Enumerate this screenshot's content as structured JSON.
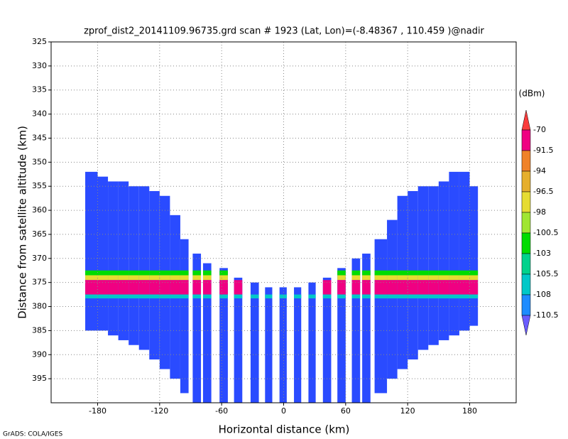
{
  "chart_data": {
    "type": "profile",
    "title": "zprof_dist2_20141109.96735.grd  scan # 1923  (Lat, Lon)=(-8.48367 , 110.459 )@nadir",
    "x_label": "Horizontal distance (km)",
    "y_label": "Distance from satellite altitude (km)",
    "footer": "GrADS: COLA/IGES",
    "xlim": [
      -225,
      225
    ],
    "ylim": [
      325,
      400
    ],
    "xticks": [
      -180,
      -120,
      -60,
      0,
      60,
      120,
      180
    ],
    "yticks": [
      325,
      330,
      335,
      340,
      345,
      350,
      355,
      360,
      365,
      370,
      375,
      380,
      385,
      390,
      395
    ],
    "grid": true,
    "colorbar": {
      "unit": "(dBm)",
      "levels": [
        -70,
        -91.5,
        -94,
        -96.5,
        -98,
        -100.5,
        -103,
        -105.5,
        -108,
        -110.5
      ],
      "colors": [
        "#fa3c3c",
        "#f00082",
        "#f08228",
        "#e6af2d",
        "#e6dc32",
        "#a0e632",
        "#00dc00",
        "#00d28c",
        "#00c8c8",
        "#1e8cff",
        "#6a5cff"
      ]
    },
    "field": {
      "color": "#2a4bff",
      "columns": [
        {
          "x0": -192,
          "x1": -180,
          "top": 352,
          "bottom": 385
        },
        {
          "x0": -180,
          "x1": -170,
          "top": 353,
          "bottom": 385
        },
        {
          "x0": -170,
          "x1": -160,
          "top": 354,
          "bottom": 386
        },
        {
          "x0": -160,
          "x1": -150,
          "top": 354,
          "bottom": 387
        },
        {
          "x0": -150,
          "x1": -140,
          "top": 355,
          "bottom": 388
        },
        {
          "x0": -140,
          "x1": -130,
          "top": 355,
          "bottom": 389
        },
        {
          "x0": -130,
          "x1": -120,
          "top": 356,
          "bottom": 391
        },
        {
          "x0": -120,
          "x1": -110,
          "top": 357,
          "bottom": 393
        },
        {
          "x0": -110,
          "x1": -100,
          "top": 361,
          "bottom": 395
        },
        {
          "x0": -100,
          "x1": -92,
          "top": 366,
          "bottom": 398
        },
        {
          "x0": -88,
          "x1": -80,
          "top": 369,
          "bottom": 400
        },
        {
          "x0": -78,
          "x1": -70,
          "top": 371,
          "bottom": 400
        },
        {
          "x0": -62,
          "x1": -54,
          "top": 372,
          "bottom": 400
        },
        {
          "x0": -48,
          "x1": -40,
          "top": 374,
          "bottom": 400
        },
        {
          "x0": -32,
          "x1": -24,
          "top": 375,
          "bottom": 400
        },
        {
          "x0": -18,
          "x1": -11,
          "top": 376,
          "bottom": 400
        },
        {
          "x0": -4,
          "x1": 3,
          "top": 376,
          "bottom": 400
        },
        {
          "x0": 10,
          "x1": 17,
          "top": 376,
          "bottom": 400
        },
        {
          "x0": 24,
          "x1": 31,
          "top": 375,
          "bottom": 400
        },
        {
          "x0": 38,
          "x1": 46,
          "top": 374,
          "bottom": 400
        },
        {
          "x0": 52,
          "x1": 60,
          "top": 372,
          "bottom": 400
        },
        {
          "x0": 66,
          "x1": 74,
          "top": 370,
          "bottom": 400
        },
        {
          "x0": 76,
          "x1": 84,
          "top": 369,
          "bottom": 400
        },
        {
          "x0": 88,
          "x1": 100,
          "top": 366,
          "bottom": 398
        },
        {
          "x0": 100,
          "x1": 110,
          "top": 362,
          "bottom": 395
        },
        {
          "x0": 110,
          "x1": 120,
          "top": 357,
          "bottom": 393
        },
        {
          "x0": 120,
          "x1": 130,
          "top": 356,
          "bottom": 391
        },
        {
          "x0": 130,
          "x1": 140,
          "top": 355,
          "bottom": 389
        },
        {
          "x0": 140,
          "x1": 150,
          "top": 355,
          "bottom": 388
        },
        {
          "x0": 150,
          "x1": 160,
          "top": 354,
          "bottom": 387
        },
        {
          "x0": 160,
          "x1": 170,
          "top": 352,
          "bottom": 386
        },
        {
          "x0": 170,
          "x1": 180,
          "top": 352,
          "bottom": 385
        },
        {
          "x0": 180,
          "x1": 188,
          "top": 355,
          "bottom": 384
        }
      ],
      "layers": [
        {
          "top": 372.5,
          "bottom": 373.5,
          "color": "#00dc00"
        },
        {
          "top": 373.5,
          "bottom": 374.5,
          "color": "#e6dc32"
        },
        {
          "top": 374.5,
          "bottom": 377.5,
          "color": "#f00082"
        },
        {
          "top": 377.5,
          "bottom": 378.3,
          "color": "#00c8c8"
        }
      ]
    }
  }
}
